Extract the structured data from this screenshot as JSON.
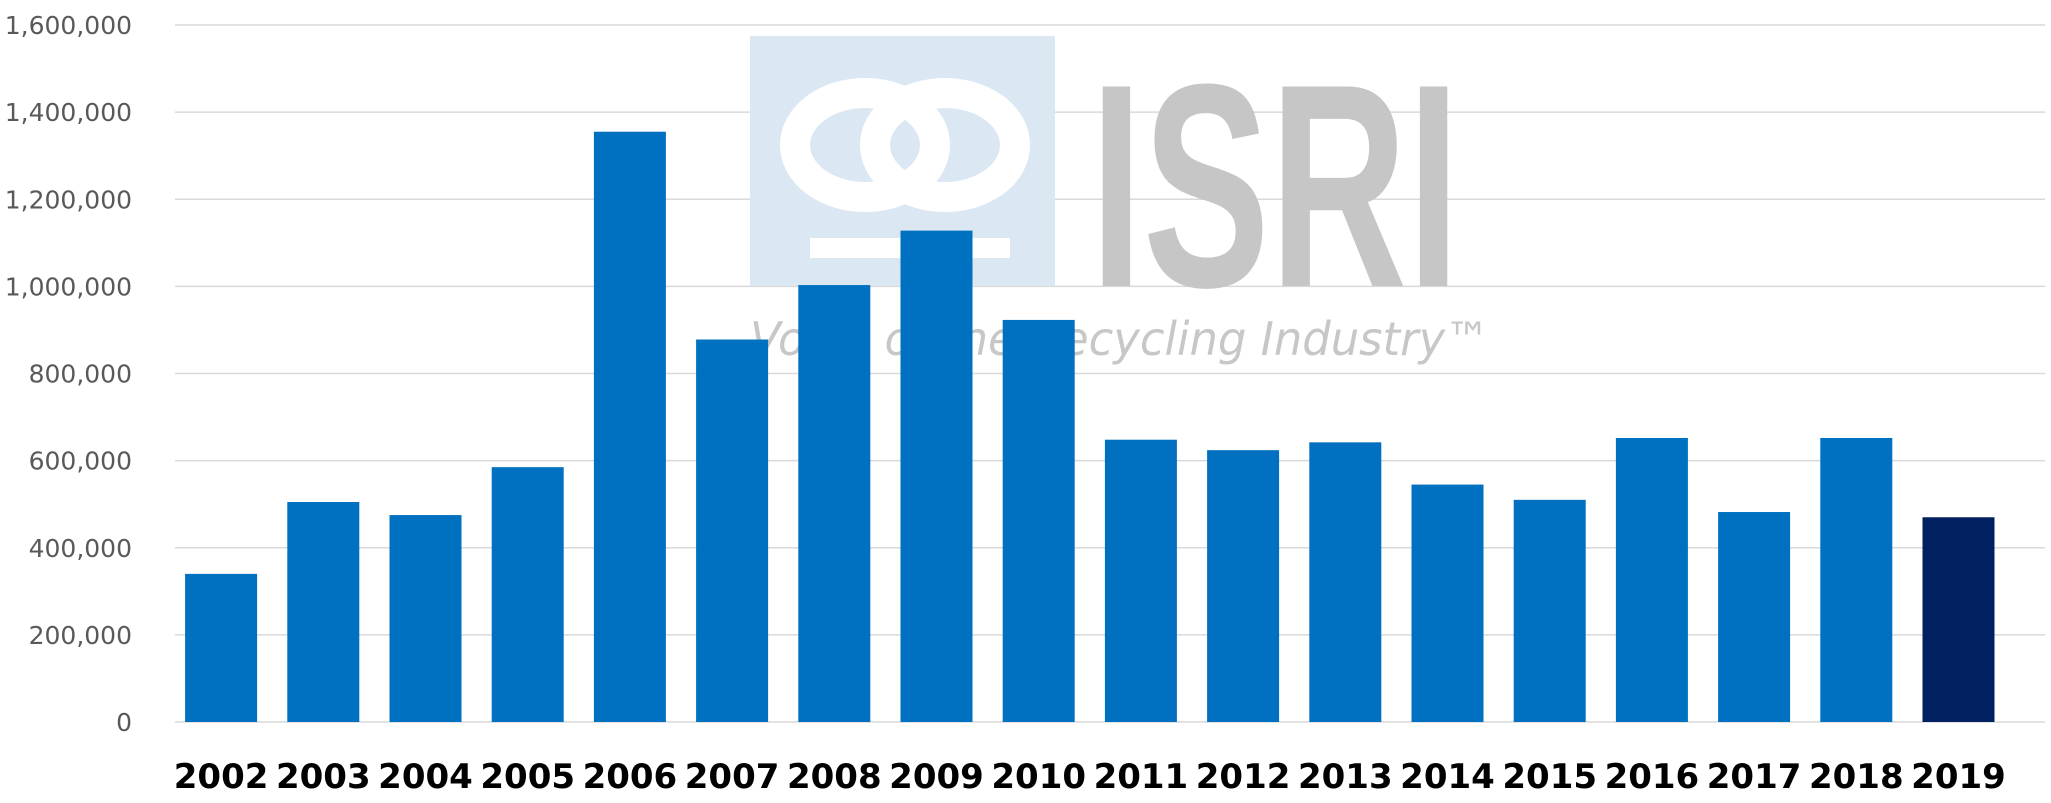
{
  "chart_data": {
    "type": "bar",
    "title": "",
    "xlabel": "",
    "ylabel": "",
    "categories": [
      "2002",
      "2003",
      "2004",
      "2005",
      "2006",
      "2007",
      "2008",
      "2009",
      "2010",
      "2011",
      "2012",
      "2013",
      "2014",
      "2015",
      "2016",
      "2017",
      "2018",
      "2019"
    ],
    "values": [
      340000,
      505000,
      475000,
      585000,
      1355000,
      878000,
      1003000,
      1128000,
      923000,
      648000,
      624000,
      642000,
      545000,
      510000,
      652000,
      482000,
      652000,
      470000
    ],
    "y_ticks": [
      "0",
      "200,000",
      "400,000",
      "600,000",
      "800,000",
      "1,000,000",
      "1,200,000",
      "1,400,000",
      "1,600,000"
    ],
    "ylim": [
      0,
      1600000
    ],
    "grid": true,
    "legend": "none",
    "colors": {
      "bar": "#0070c0",
      "highlight_bar": "#002060",
      "gridline": "#d9d9d9"
    },
    "highlight_index": 17
  },
  "watermark": {
    "letters": "ISRI",
    "tagline": "Voice of the Recycling Industry™",
    "logo_bg": "#dbe8f4"
  }
}
